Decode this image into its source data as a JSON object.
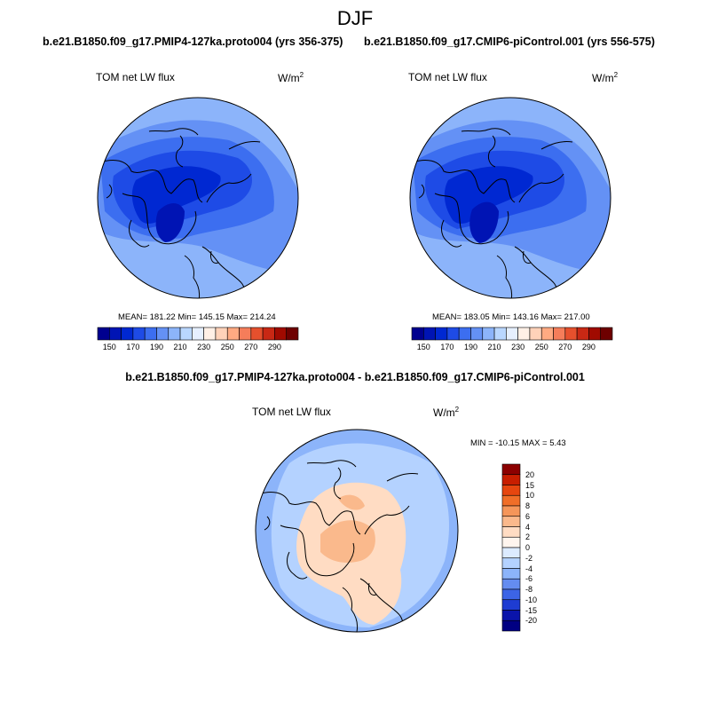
{
  "season": "DJF",
  "panels": {
    "left": {
      "case": "b.e21.B1850.f09_g17.PMIP4-127ka.proto004 (yrs 356-375)",
      "variable": "TOM net LW flux",
      "units": "W/m",
      "units_exp": "2",
      "stats": "MEAN= 181.22  Min= 145.15  Max= 214.24"
    },
    "right": {
      "case": "b.e21.B1850.f09_g17.CMIP6-piControl.001 (yrs 556-575)",
      "variable": "TOM net LW flux",
      "units": "W/m",
      "units_exp": "2",
      "stats": "MEAN= 183.05  Min= 143.16  Max= 217.00"
    },
    "diff": {
      "case": "b.e21.B1850.f09_g17.PMIP4-127ka.proto004 - b.e21.B1850.f09_g17.CMIP6-piControl.001",
      "variable": "TOM net LW flux",
      "units": "W/m",
      "units_exp": "2",
      "stats": "MIN = -10.15 MAX =   5.43"
    }
  },
  "colorbar_abs": {
    "labels": [
      "150",
      "170",
      "190",
      "210",
      "230",
      "250",
      "270",
      "290"
    ],
    "colors": [
      "#00008f",
      "#0014b4",
      "#0028d2",
      "#1e4be6",
      "#3c6ef0",
      "#6491f5",
      "#8cb4fa",
      "#b9d7ff",
      "#e6f0ff",
      "#fff0e6",
      "#ffd2b9",
      "#ffaa82",
      "#f57d5a",
      "#e6502d",
      "#c82814",
      "#a00a00",
      "#6e0000"
    ]
  },
  "colorbar_diff": {
    "labels": [
      "20",
      "15",
      "10",
      "8",
      "6",
      "4",
      "2",
      "0",
      "-2",
      "-4",
      "-6",
      "-8",
      "-10",
      "-15",
      "-20"
    ],
    "colors": [
      "#8c0000",
      "#c81e00",
      "#e6460f",
      "#f06e28",
      "#f5965a",
      "#fab98c",
      "#ffdcc3",
      "#fff5ee",
      "#dcebff",
      "#b4d2ff",
      "#8cb4fa",
      "#648cf0",
      "#3c64e6",
      "#1e3cd2",
      "#0a14aa",
      "#000082"
    ]
  },
  "map_colors": {
    "abs_base": "#8cb4fa",
    "abs_mid": "#6491f5",
    "abs_dark": "#3c6ef0",
    "abs_darker": "#1e4be6",
    "abs_core": "#0028d2",
    "abs_min": "#0014b4",
    "diff_base": "#8cb4fa",
    "diff_light": "#b4d2ff",
    "diff_pos1": "#ffdcc3",
    "diff_pos2": "#fab98c"
  }
}
